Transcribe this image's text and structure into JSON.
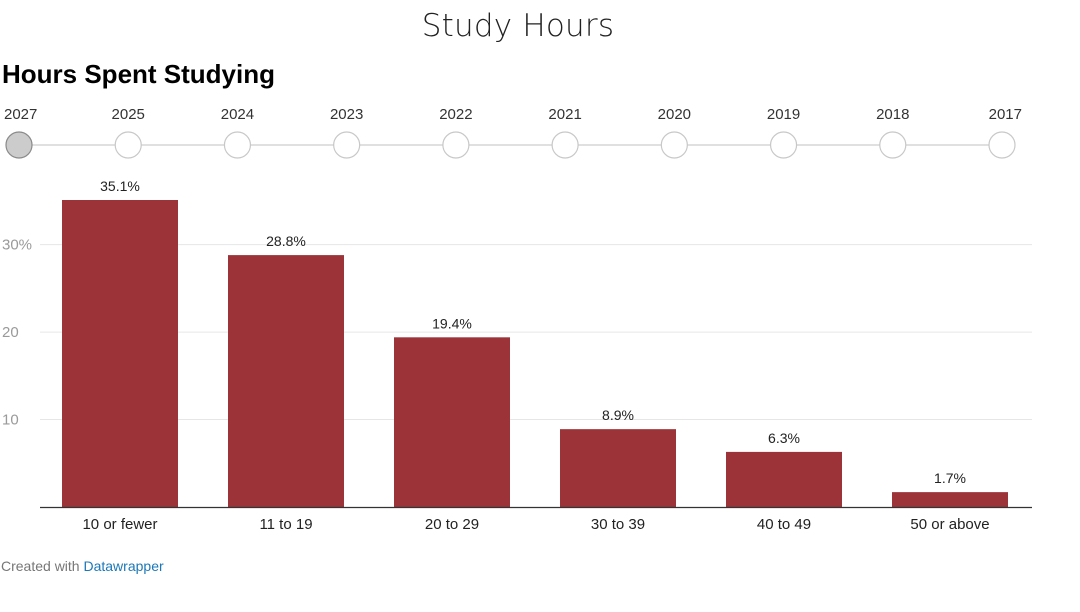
{
  "page_title": "Study Hours",
  "timeline": {
    "years": [
      "2027",
      "2025",
      "2024",
      "2023",
      "2022",
      "2021",
      "2020",
      "2019",
      "2018",
      "2017"
    ],
    "selected": "2027",
    "colors": {
      "selected_fill": "#cccccc",
      "node_fill": "#ffffff",
      "node_stroke": "#c8c8c8",
      "track": "#d5d5d5"
    }
  },
  "chart_data": {
    "type": "bar",
    "title": "Hours Spent Studying",
    "xlabel": "",
    "ylabel": "",
    "categories": [
      "10 or fewer",
      "11 to 19",
      "20 to 29",
      "30 to 39",
      "40 to 49",
      "50 or above"
    ],
    "values": [
      35.1,
      28.8,
      19.4,
      8.9,
      6.3,
      1.7
    ],
    "value_labels": [
      "35.1%",
      "28.8%",
      "19.4%",
      "8.9%",
      "6.3%",
      "1.7%"
    ],
    "ylim": [
      0,
      35.1
    ],
    "yticks": [
      {
        "value": 10,
        "label": "10"
      },
      {
        "value": 20,
        "label": "20"
      },
      {
        "value": 30,
        "label": "30%"
      }
    ],
    "grid": true,
    "legend": "none",
    "colors": {
      "bar": "#9b3338",
      "grid": "#e6e6e6",
      "baseline": "#333333"
    }
  },
  "footer": {
    "prefix": "Created with ",
    "link": "Datawrapper"
  }
}
